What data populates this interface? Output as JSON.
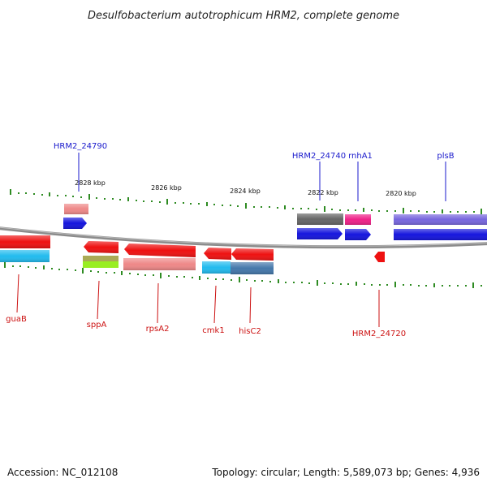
{
  "title": "Desulfobacterium autotrophicum HRM2, complete genome",
  "scale_labels": [
    "2828 kbp",
    "2826 kbp",
    "2824 kbp",
    "2822 kbp",
    "2820 kbp"
  ],
  "genes_top": [
    "HRM2_24790",
    "HRM2_24740",
    "rnhA1",
    "plsB"
  ],
  "genes_bottom": [
    "guaB",
    "sppA",
    "rpsA2",
    "cmk1",
    "hisC2",
    "HRM2_24720"
  ],
  "footer": {
    "accession": "Accession: NC_012108",
    "topology": "Topology: circular; Length: 5,589,073 bp; Genes: 4,936"
  },
  "colors": {
    "backbone": "#8c8c8c",
    "tick": "#2e8b22",
    "top_label": "#1a1acc",
    "bottom_label": "#cc1111",
    "gene_red": "#ee1111",
    "gene_blue": "#1515dd",
    "gene_pink": "#ee8888",
    "gene_cyan": "#22bbee",
    "gene_steel": "#4477aa",
    "gene_gray": "#666666",
    "gene_magenta": "#ee2288",
    "gene_purple": "#7766dd",
    "gene_olive": "#aaaa55",
    "gene_lime": "#99ee22"
  }
}
